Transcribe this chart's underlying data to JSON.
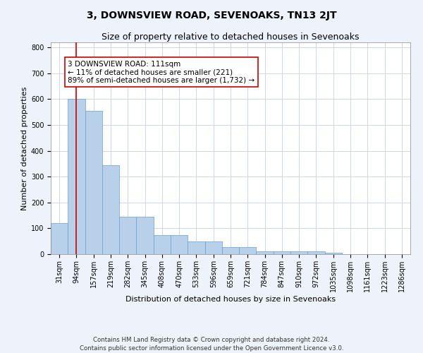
{
  "title": "3, DOWNSVIEW ROAD, SEVENOAKS, TN13 2JT",
  "subtitle": "Size of property relative to detached houses in Sevenoaks",
  "xlabel": "Distribution of detached houses by size in Sevenoaks",
  "ylabel": "Number of detached properties",
  "categories": [
    "31sqm",
    "94sqm",
    "157sqm",
    "219sqm",
    "282sqm",
    "345sqm",
    "408sqm",
    "470sqm",
    "533sqm",
    "596sqm",
    "659sqm",
    "721sqm",
    "784sqm",
    "847sqm",
    "910sqm",
    "972sqm",
    "1035sqm",
    "1098sqm",
    "1161sqm",
    "1223sqm",
    "1286sqm"
  ],
  "values": [
    120,
    600,
    555,
    345,
    145,
    145,
    75,
    75,
    50,
    50,
    28,
    28,
    12,
    12,
    10,
    10,
    5,
    0,
    0,
    0,
    0
  ],
  "bar_color": "#b8d0ea",
  "bar_edge_color": "#6a9fc8",
  "vline_x": 1.0,
  "vline_color": "#cc0000",
  "annotation_title": "3 DOWNSVIEW ROAD: 111sqm",
  "annotation_line1": "← 11% of detached houses are smaller (221)",
  "annotation_line2": "89% of semi-detached houses are larger (1,732) →",
  "annotation_box_color": "#ffffff",
  "annotation_box_edge": "#cc0000",
  "ylim": [
    0,
    820
  ],
  "yticks": [
    0,
    100,
    200,
    300,
    400,
    500,
    600,
    700,
    800
  ],
  "footer1": "Contains HM Land Registry data © Crown copyright and database right 2024.",
  "footer2": "Contains public sector information licensed under the Open Government Licence v3.0.",
  "bg_color": "#eef2fb",
  "plot_bg_color": "#ffffff",
  "title_fontsize": 10,
  "subtitle_fontsize": 9,
  "axis_label_fontsize": 8,
  "tick_fontsize": 7,
  "annotation_fontsize": 7.5
}
